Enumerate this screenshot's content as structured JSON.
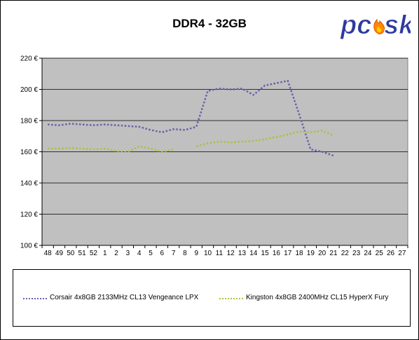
{
  "chart_data": {
    "type": "line",
    "title": "DDR4 - 32GB",
    "xlabel": "",
    "ylabel": "",
    "ylim": [
      100,
      220
    ],
    "yticks": [
      "100 €",
      "120 €",
      "140 €",
      "160 €",
      "180 €",
      "200 €",
      "220 €"
    ],
    "ytick_values": [
      100,
      120,
      140,
      160,
      180,
      200,
      220
    ],
    "categories": [
      "48",
      "49",
      "50",
      "51",
      "52",
      "1",
      "2",
      "3",
      "4",
      "5",
      "6",
      "7",
      "8",
      "9",
      "10",
      "11",
      "12",
      "13",
      "14",
      "15",
      "16",
      "17",
      "18",
      "19",
      "20",
      "21",
      "22",
      "23",
      "24",
      "25",
      "26",
      "27"
    ],
    "grid": true,
    "legend_position": "bottom",
    "series": [
      {
        "name": "Corsair 4x8GB 2133MHz CL13 Vengeance LPX",
        "color": "#6a5fa8",
        "values": [
          177.5,
          177,
          178,
          177.5,
          177,
          177.5,
          177,
          176.5,
          176,
          174,
          172.5,
          174.5,
          174,
          176,
          199,
          200.5,
          200,
          200.5,
          196.5,
          202.5,
          204,
          205.5,
          184,
          161.5,
          160,
          157.5,
          null,
          null,
          null,
          null,
          null,
          null
        ]
      },
      {
        "name": "Kingston 4x8GB 2400MHz CL15 HyperX Fury",
        "color": "#a8c246",
        "values": [
          162,
          162,
          162.5,
          162,
          161.5,
          162,
          160.5,
          160,
          163.5,
          162,
          160,
          161.5,
          null,
          163.5,
          165.5,
          166.5,
          166,
          166.5,
          167,
          168,
          169.5,
          171,
          173,
          172.5,
          173.5,
          170.5,
          null,
          null,
          null,
          null,
          null,
          null
        ]
      }
    ]
  },
  "logo": {
    "text": "pcsk",
    "colors": {
      "pc": "#2e3a9e",
      "flame": "#ff8a00"
    }
  }
}
